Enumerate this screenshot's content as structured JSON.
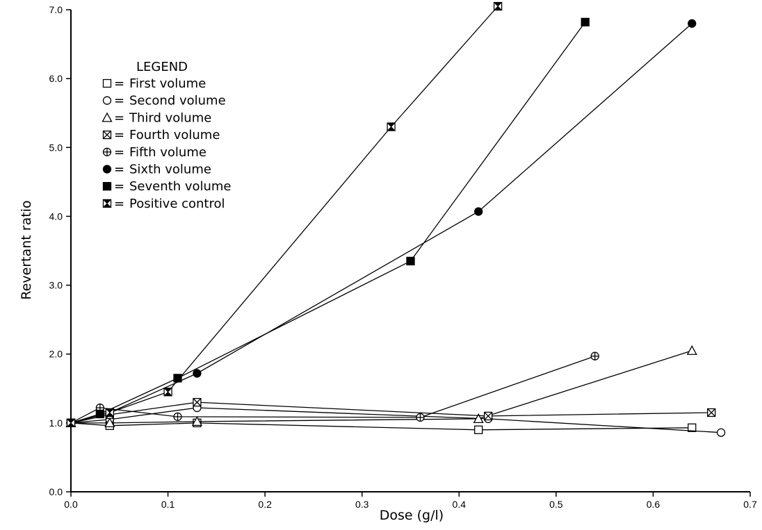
{
  "chart_data": {
    "type": "line",
    "xlabel": "Dose (g/l)",
    "ylabel": "Revertant ratio",
    "xlim": [
      0.0,
      0.7
    ],
    "ylim": [
      0.0,
      7.0
    ],
    "x_ticks": [
      "0.0",
      "0.1",
      "0.2",
      "0.3",
      "0.4",
      "0.5",
      "0.6",
      "0.7"
    ],
    "y_ticks": [
      "0.0",
      "1.0",
      "2.0",
      "3.0",
      "4.0",
      "5.0",
      "6.0",
      "7.0"
    ],
    "grid": false,
    "legend": {
      "title": "LEGEND",
      "placement": "upper-left",
      "separator": "="
    },
    "series": [
      {
        "name": "First volume",
        "marker": "open-square",
        "points": [
          [
            0.0,
            1.0
          ],
          [
            0.04,
            0.96
          ],
          [
            0.13,
            1.0
          ],
          [
            0.42,
            0.9
          ],
          [
            0.64,
            0.93
          ]
        ]
      },
      {
        "name": "Second volume",
        "marker": "open-circle",
        "points": [
          [
            0.0,
            1.0
          ],
          [
            0.04,
            1.05
          ],
          [
            0.13,
            1.22
          ],
          [
            0.43,
            1.06
          ],
          [
            0.67,
            0.86
          ]
        ]
      },
      {
        "name": "Third volume",
        "marker": "open-triangle",
        "points": [
          [
            0.0,
            1.0
          ],
          [
            0.04,
            1.0
          ],
          [
            0.13,
            1.02
          ],
          [
            0.42,
            1.06
          ],
          [
            0.64,
            2.05
          ]
        ]
      },
      {
        "name": "Fourth volume",
        "marker": "square-x",
        "points": [
          [
            0.0,
            1.0
          ],
          [
            0.04,
            1.12
          ],
          [
            0.13,
            1.3
          ],
          [
            0.43,
            1.1
          ],
          [
            0.66,
            1.15
          ]
        ]
      },
      {
        "name": "Fifth volume",
        "marker": "circle-plus",
        "points": [
          [
            0.0,
            1.0
          ],
          [
            0.03,
            1.22
          ],
          [
            0.11,
            1.09
          ],
          [
            0.36,
            1.08
          ],
          [
            0.54,
            1.97
          ]
        ]
      },
      {
        "name": "Sixth volume",
        "marker": "filled-circle",
        "points": [
          [
            0.0,
            1.0
          ],
          [
            0.04,
            1.15
          ],
          [
            0.13,
            1.72
          ],
          [
            0.42,
            4.07
          ],
          [
            0.64,
            6.8
          ]
        ]
      },
      {
        "name": "Seventh volume",
        "marker": "filled-square",
        "points": [
          [
            0.0,
            1.0
          ],
          [
            0.03,
            1.13
          ],
          [
            0.11,
            1.65
          ],
          [
            0.35,
            3.35
          ],
          [
            0.53,
            6.82
          ]
        ]
      },
      {
        "name": "Positive control",
        "marker": "square-hourglass",
        "points": [
          [
            0.0,
            1.0
          ],
          [
            0.04,
            1.15
          ],
          [
            0.1,
            1.45
          ],
          [
            0.33,
            5.3
          ],
          [
            0.44,
            7.05
          ]
        ]
      }
    ]
  }
}
